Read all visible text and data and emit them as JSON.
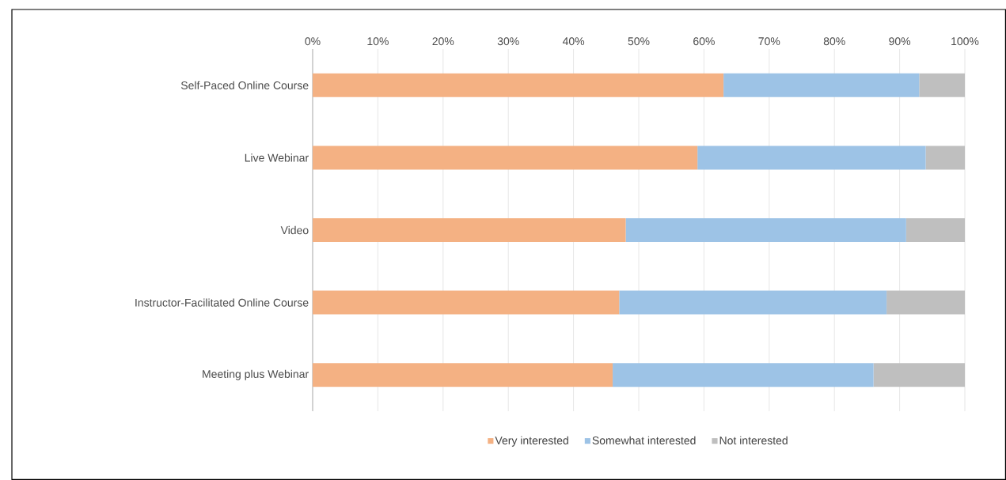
{
  "chart_data": {
    "type": "bar",
    "orientation": "horizontal",
    "stacked": true,
    "categories": [
      "Self-Paced Online Course",
      "Live Webinar",
      "Video",
      "Instructor-Facilitated Online Course",
      "Meeting plus Webinar"
    ],
    "series": [
      {
        "name": "Very interested",
        "color": "#f4b183",
        "values": [
          63,
          59,
          48,
          47,
          46
        ]
      },
      {
        "name": "Somewhat interested",
        "color": "#9dc3e6",
        "values": [
          30,
          35,
          43,
          41,
          40
        ]
      },
      {
        "name": "Not interested",
        "color": "#bfbfbf",
        "values": [
          7,
          6,
          9,
          12,
          14
        ]
      }
    ],
    "xlim": [
      0,
      100
    ],
    "xticks": [
      {
        "value": 0,
        "label": "0%"
      },
      {
        "value": 10,
        "label": "10%"
      },
      {
        "value": 20,
        "label": "20%"
      },
      {
        "value": 30,
        "label": "30%"
      },
      {
        "value": 40,
        "label": "40%"
      },
      {
        "value": 50,
        "label": "50%"
      },
      {
        "value": 60,
        "label": "60%"
      },
      {
        "value": 70,
        "label": "70%"
      },
      {
        "value": 80,
        "label": "80%"
      },
      {
        "value": 90,
        "label": "90%"
      },
      {
        "value": 100,
        "label": "100%"
      }
    ],
    "grid": "x",
    "legend": "bottom"
  }
}
